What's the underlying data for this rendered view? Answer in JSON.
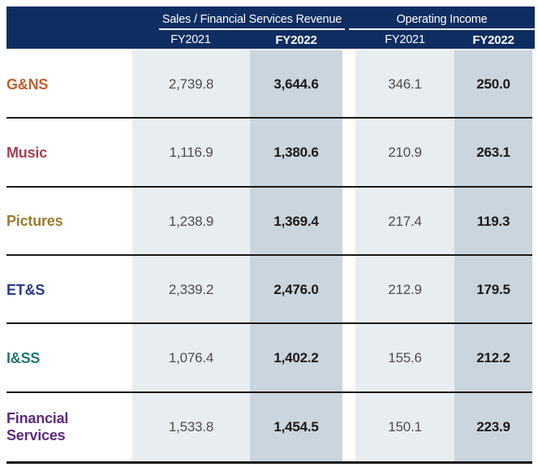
{
  "header": {
    "background": "#0e2d61",
    "text_color": "#ffffff",
    "groups": [
      {
        "title": "Sales / Financial Services Revenue",
        "years": [
          "FY2021",
          "FY2022"
        ]
      },
      {
        "title": "Operating Income",
        "years": [
          "FY2021",
          "FY2022"
        ]
      }
    ]
  },
  "table": {
    "column_backgrounds": {
      "fy2021": "#e8edf2",
      "fy2022": "#cbd5de"
    },
    "rows": [
      {
        "label": "G&NS",
        "color": "#c05f2e",
        "values": [
          "2,739.8",
          "3,644.6",
          "346.1",
          "250.0"
        ]
      },
      {
        "label": "Music",
        "color": "#a93f52",
        "values": [
          "1,116.9",
          "1,380.6",
          "210.9",
          "263.1"
        ]
      },
      {
        "label": "Pictures",
        "color": "#9d7b30",
        "values": [
          "1,238.9",
          "1,369.4",
          "217.4",
          "119.3"
        ]
      },
      {
        "label": "ET&S",
        "color": "#2b3a8f",
        "values": [
          "2,339.2",
          "2,476.0",
          "212.9",
          "179.5"
        ]
      },
      {
        "label": "I&SS",
        "color": "#1f7670",
        "values": [
          "1,076.4",
          "1,402.2",
          "155.6",
          "212.2"
        ]
      },
      {
        "label": "Financial Services",
        "color": "#5d2c7f",
        "values": [
          "1,533.8",
          "1,454.5",
          "150.1",
          "223.9"
        ]
      }
    ]
  },
  "chart_data": {
    "type": "table",
    "title": "Segment results: Sales / Financial Services Revenue and Operating Income",
    "column_groups": [
      "Sales / Financial Services Revenue",
      "Operating Income"
    ],
    "columns": [
      "Sales/FSR FY2021",
      "Sales/FSR FY2022",
      "Operating Income FY2021",
      "Operating Income FY2022"
    ],
    "categories": [
      "G&NS",
      "Music",
      "Pictures",
      "ET&S",
      "I&SS",
      "Financial Services"
    ],
    "series": [
      {
        "name": "Sales / Financial Services Revenue FY2021",
        "values": [
          2739.8,
          1116.9,
          1238.9,
          2339.2,
          1076.4,
          1533.8
        ]
      },
      {
        "name": "Sales / Financial Services Revenue FY2022",
        "values": [
          3644.6,
          1380.6,
          1369.4,
          2476.0,
          1402.2,
          1454.5
        ]
      },
      {
        "name": "Operating Income FY2021",
        "values": [
          346.1,
          210.9,
          217.4,
          212.9,
          155.6,
          150.1
        ]
      },
      {
        "name": "Operating Income FY2022",
        "values": [
          250.0,
          263.1,
          119.3,
          179.5,
          212.2,
          223.9
        ]
      }
    ]
  }
}
